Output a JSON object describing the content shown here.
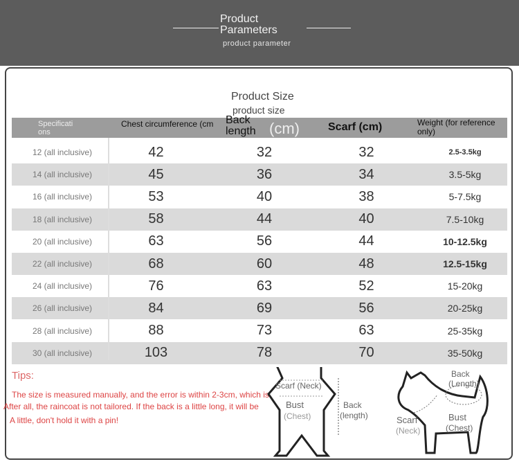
{
  "banner": {
    "title_line1": "Product",
    "title_line2": "Parameters",
    "subtitle": "product parameter"
  },
  "table_title": "Product Size",
  "table_subtitle": "product size",
  "headers": {
    "spec": "Specificati ons",
    "chest": "Chest circumference (cm",
    "back": "Back length",
    "back_unit": "(cm)",
    "scarf": "Scarf (cm)",
    "weight": "Weight (for reference only)"
  },
  "rows": [
    [
      "12 (all inclusive)",
      "42",
      "32",
      "32",
      "2.5-3.5kg"
    ],
    [
      "14 (all inclusive)",
      "45",
      "36",
      "34",
      "3.5-5kg"
    ],
    [
      "16 (all inclusive)",
      "53",
      "40",
      "38",
      "5-7.5kg"
    ],
    [
      "18 (all inclusive)",
      "58",
      "44",
      "40",
      "7.5-10kg"
    ],
    [
      "20 (all inclusive)",
      "63",
      "56",
      "44",
      "10-12.5kg"
    ],
    [
      "22 (all inclusive)",
      "68",
      "60",
      "48",
      "12.5-15kg"
    ],
    [
      "24 (all inclusive)",
      "76",
      "63",
      "52",
      "15-20kg"
    ],
    [
      "26 (all inclusive)",
      "84",
      "69",
      "56",
      "20-25kg"
    ],
    [
      "28 (all inclusive)",
      "88",
      "73",
      "63",
      "25-35kg"
    ],
    [
      "30 (all inclusive)",
      "103",
      "78",
      "70",
      "35-50kg"
    ]
  ],
  "tips": {
    "title": "Tips:",
    "line1": "The size is measured manually, and the error is within 2-3cm, which is",
    "line2": "After all, the raincoat is not tailored. If the back is a little long, it will be",
    "line3": "A little, don't hold it with a pin!"
  },
  "diagram": {
    "scarf": "Scarf (Neck)",
    "bust": "Bust",
    "chest": "(Chest)",
    "back": "Back",
    "length": "(length)",
    "dog_back": "Back",
    "dog_length": "(Length)",
    "dog_scarf": "Scarf",
    "dog_neck": "(Neck)",
    "dog_bust": "Bust",
    "dog_chest": "(Chest)"
  }
}
